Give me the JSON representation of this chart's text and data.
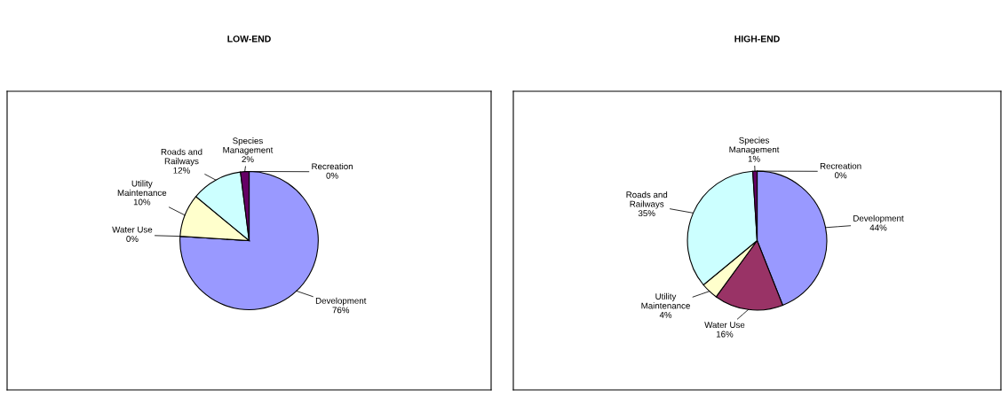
{
  "chart_data": [
    {
      "type": "pie",
      "title": "LOW-END",
      "categories": [
        "Development",
        "Water Use",
        "Utility\nMaintenance",
        "Roads and\nRailways",
        "Species\nManagement",
        "Recreation"
      ],
      "values": [
        76,
        0,
        10,
        12,
        2,
        0
      ],
      "value_labels": [
        "76%",
        "0%",
        "10%",
        "12%",
        "2%",
        "0%"
      ],
      "colors": [
        "#9999ff",
        "#993366",
        "#ffffcc",
        "#ccffff",
        "#660066",
        "#ff8080"
      ]
    },
    {
      "type": "pie",
      "title": "HIGH-END",
      "categories": [
        "Development",
        "Water Use",
        "Utility\nMaintenance",
        "Roads and\nRailways",
        "Species\nManagement",
        "Recreation"
      ],
      "values": [
        44,
        16,
        4,
        35,
        1,
        0
      ],
      "value_labels": [
        "44%",
        "16%",
        "4%",
        "35%",
        "1%",
        "0%"
      ],
      "colors": [
        "#9999ff",
        "#993366",
        "#ffffcc",
        "#ccffff",
        "#660066",
        "#ff8080"
      ]
    }
  ]
}
